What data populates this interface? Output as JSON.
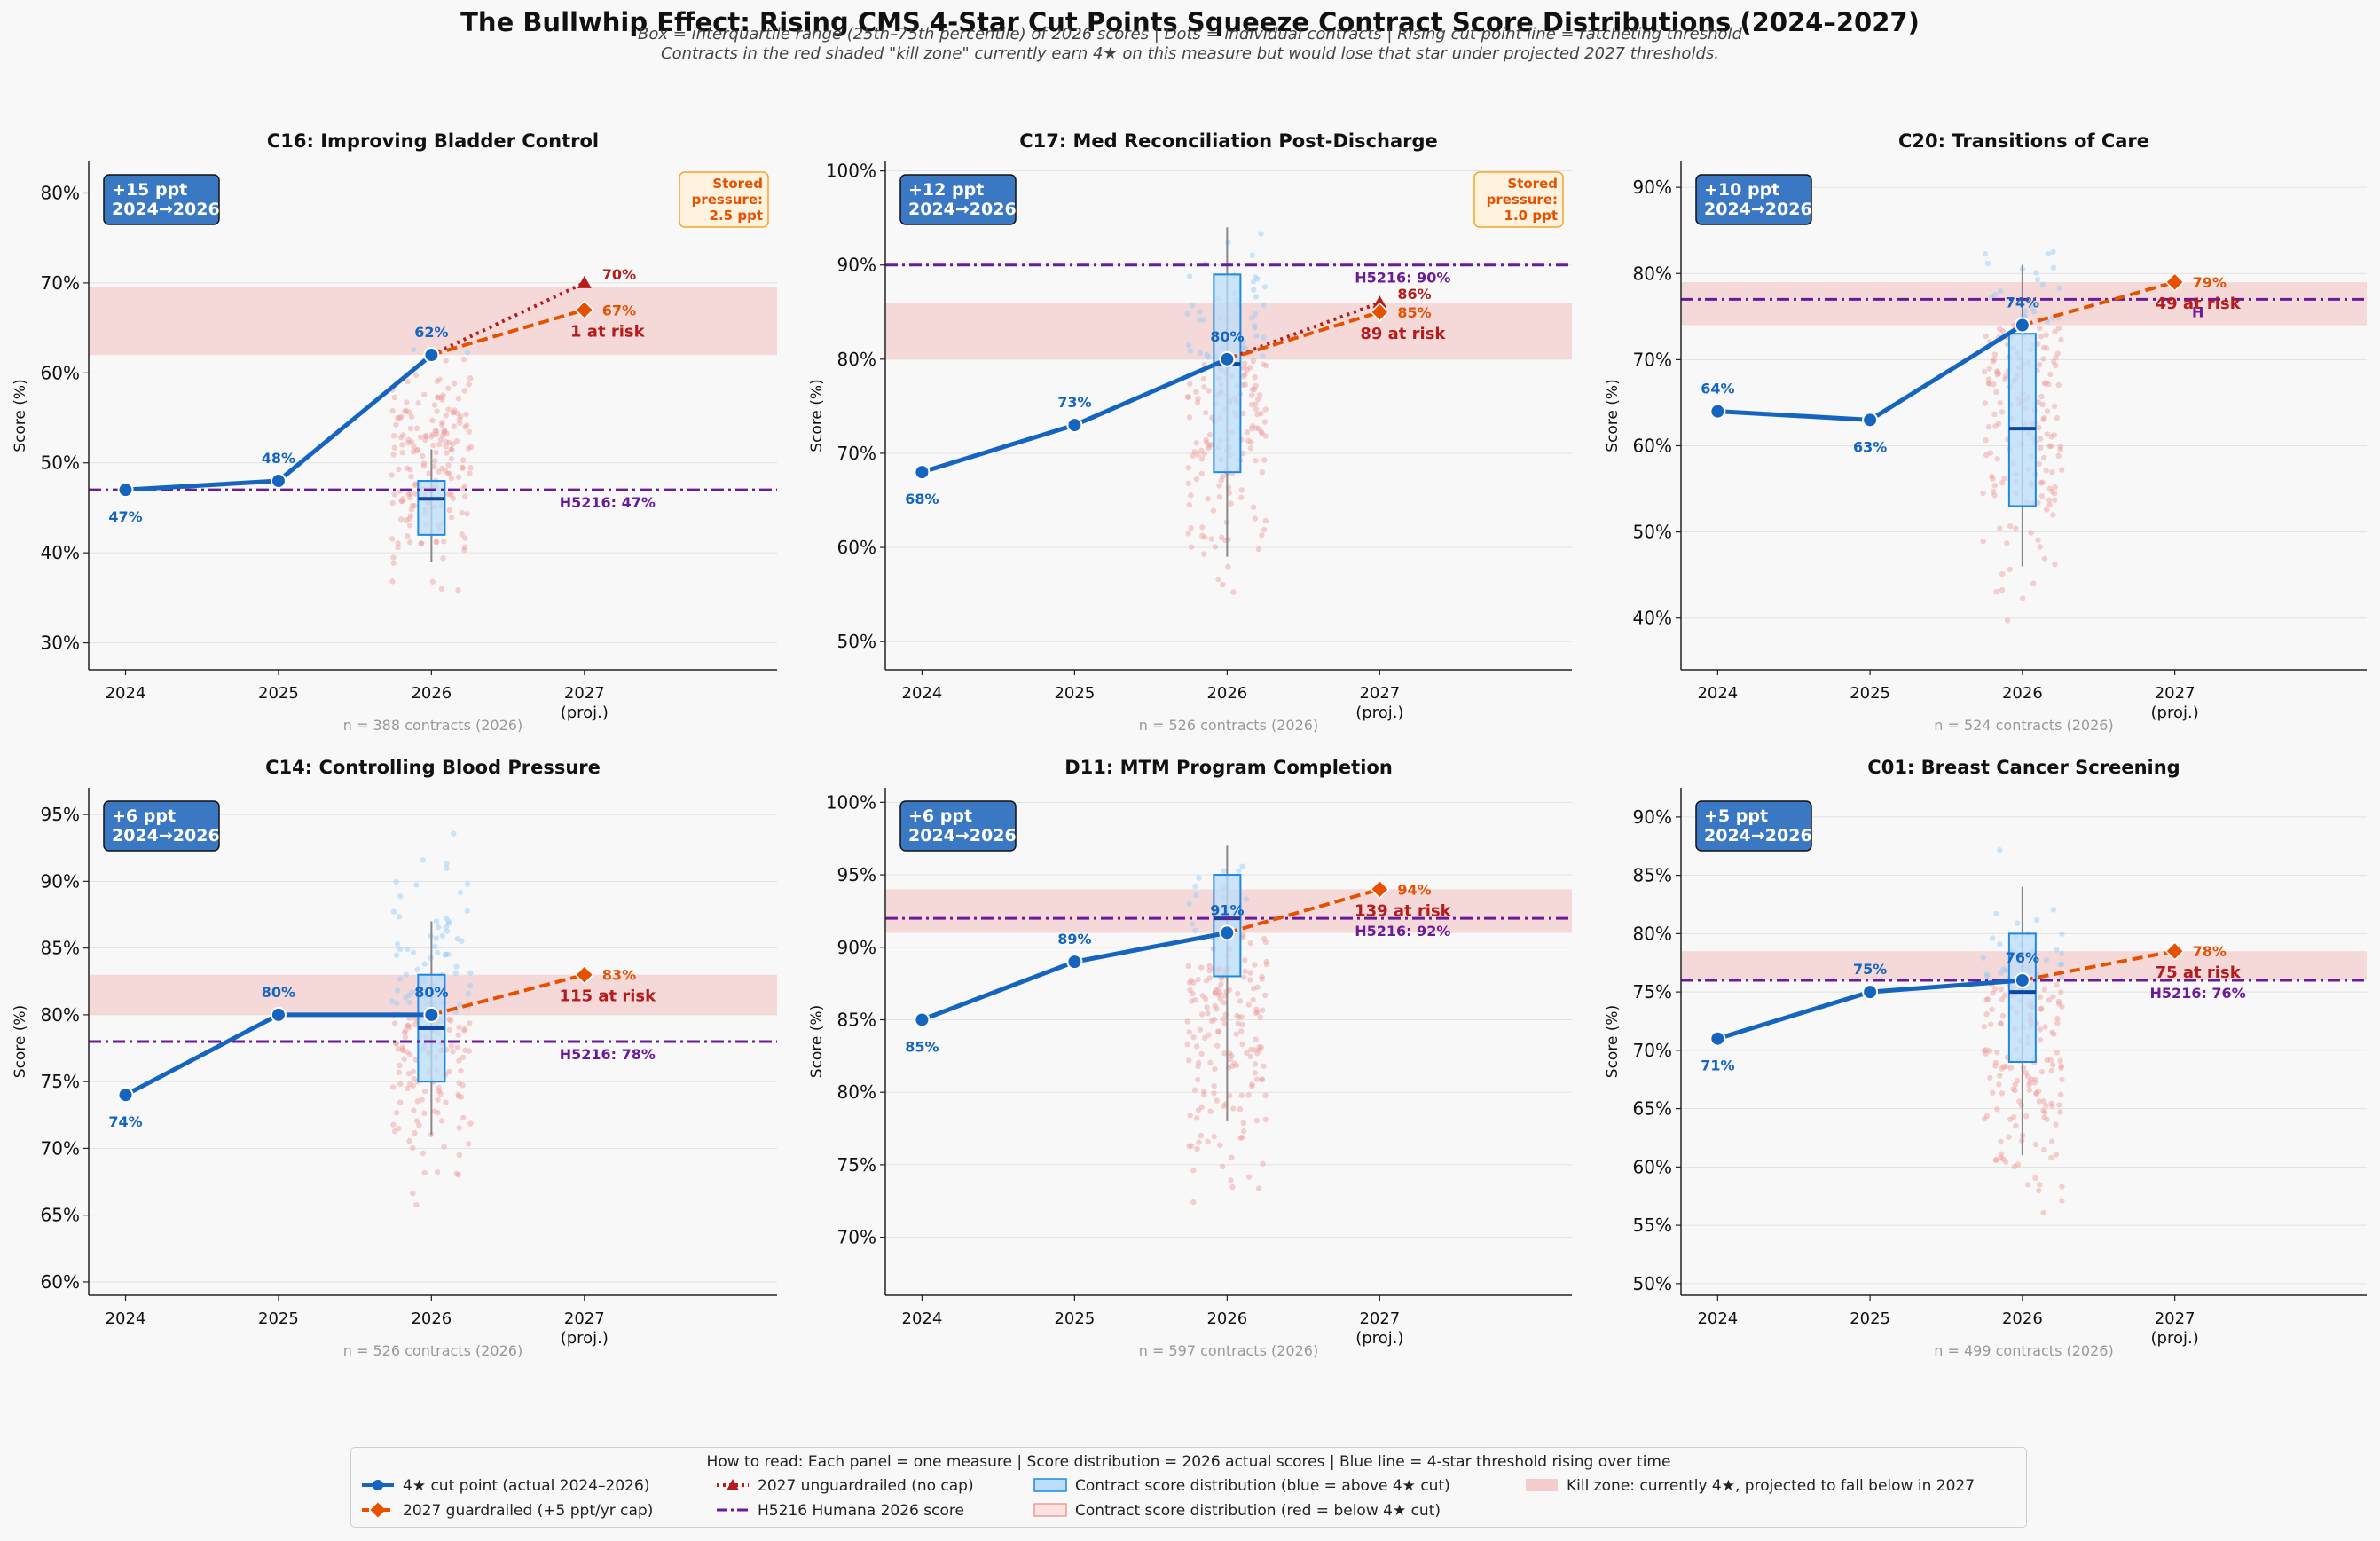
{
  "title": "The Bullwhip Effect: Rising CMS 4-Star Cut Points Squeeze Contract Score Distributions (2024–2027)",
  "subtitle_1": "Box = interquartile range (25th–75th percentile) of 2026 scores  |  Dots = individual contracts  |  Rising cut point line = ratcheting threshold",
  "subtitle_2": "Contracts in the red shaded \"kill zone\" currently earn 4★ on this measure but would lose that star under projected 2027 thresholds.",
  "x_ticks": [
    "2024",
    "2025",
    "2026",
    "2027"
  ],
  "x_tick_2027_sub": "(proj.)",
  "ylabel": "Score (%)",
  "colors": {
    "cut": "#1565c0",
    "guard": "#e65100",
    "unguard": "#b71c1c",
    "humana": "#6a1b9a",
    "kill": "#f4cccc",
    "dot_above": "#90caf9",
    "dot_below": "#ef9a9a",
    "box_fill": "#bbdefb",
    "badge": "#3a78c3",
    "stored_fill": "#fff3e0",
    "stored_edge": "#f5a623"
  },
  "chart_data": [
    {
      "type": "line",
      "title": "C16: Improving Bladder Control",
      "ylim": [
        27,
        83.5
      ],
      "yticks": [
        30,
        40,
        50,
        60,
        70,
        80
      ],
      "x": [
        2024,
        2025,
        2026,
        2027
      ],
      "cut_points": [
        47,
        48,
        62
      ],
      "cut_labels": [
        "47%",
        "48%",
        "62%"
      ],
      "guardrailed_2027": 67,
      "guardrailed_label": "67%",
      "unguardrailed_2027": 70,
      "unguardrailed_label": "70%",
      "kill_zone": [
        62,
        69.5
      ],
      "humana_2026": 47,
      "humana_label": "H5216: 47%",
      "at_risk_label": "1 at risk",
      "box_2026": {
        "q1": 42,
        "median": 46,
        "q3": 48,
        "whisker_low": 39,
        "whisker_high": 51.5
      },
      "dot_range": [
        34,
        65
      ],
      "n_label": "n = 388 contracts (2026)",
      "badge": "+15 ppt\n2024→2026",
      "stored_pressure": "Stored\npressure:\n2.5 ppt"
    },
    {
      "type": "line",
      "title": "C17: Med Reconciliation Post-Discharge",
      "ylim": [
        47,
        101
      ],
      "yticks": [
        50,
        60,
        70,
        80,
        90,
        100
      ],
      "x": [
        2024,
        2025,
        2026,
        2027
      ],
      "cut_points": [
        68,
        73,
        80
      ],
      "cut_labels": [
        "68%",
        "73%",
        "80%"
      ],
      "guardrailed_2027": 85,
      "guardrailed_label": "85%",
      "unguardrailed_2027": 86,
      "unguardrailed_label": "86%",
      "kill_zone": [
        80,
        86
      ],
      "humana_2026": 90,
      "humana_label": "H5216: 90%",
      "at_risk_label": "89 at risk",
      "box_2026": {
        "q1": 68,
        "median": 79.5,
        "q3": 89,
        "whisker_low": 59,
        "whisker_high": 94
      },
      "dot_range": [
        52,
        98
      ],
      "n_label": "n = 526 contracts (2026)",
      "badge": "+12 ppt\n2024→2026",
      "stored_pressure": "Stored\npressure:\n1.0 ppt"
    },
    {
      "type": "line",
      "title": "C20: Transitions of Care",
      "ylim": [
        34,
        93
      ],
      "yticks": [
        40,
        50,
        60,
        70,
        80,
        90
      ],
      "x": [
        2024,
        2025,
        2026,
        2027
      ],
      "cut_points": [
        64,
        63,
        74
      ],
      "cut_labels": [
        "64%",
        "63%",
        "74%"
      ],
      "guardrailed_2027": 79,
      "guardrailed_label": "79%",
      "kill_zone": [
        74,
        79
      ],
      "humana_2026": 77,
      "humana_label": "H",
      "at_risk_label": "49 at risk",
      "box_2026": {
        "q1": 53,
        "median": 62,
        "q3": 73,
        "whisker_low": 46,
        "whisker_high": 81
      },
      "dot_range": [
        35,
        93
      ],
      "n_label": "n = 524 contracts (2026)",
      "badge": "+10 ppt\n2024→2026"
    },
    {
      "type": "line",
      "title": "C14: Controlling Blood Pressure",
      "ylim": [
        59,
        97
      ],
      "yticks": [
        60,
        65,
        70,
        75,
        80,
        85,
        90,
        95
      ],
      "x": [
        2024,
        2025,
        2026,
        2027
      ],
      "cut_points": [
        74,
        80,
        80
      ],
      "cut_labels": [
        "74%",
        "80%",
        "80%"
      ],
      "guardrailed_2027": 83,
      "guardrailed_label": "83%",
      "kill_zone": [
        80,
        83
      ],
      "humana_2026": 78,
      "humana_label": "H5216: 78%",
      "at_risk_label": "115 at risk",
      "box_2026": {
        "q1": 75,
        "median": 79,
        "q3": 83,
        "whisker_low": 71,
        "whisker_high": 87
      },
      "dot_range": [
        62,
        95
      ],
      "n_label": "n = 526 contracts (2026)",
      "badge": "+6 ppt\n2024→2026"
    },
    {
      "type": "line",
      "title": "D11: MTM Program Completion",
      "ylim": [
        66,
        101
      ],
      "yticks": [
        70,
        75,
        80,
        85,
        90,
        95,
        100
      ],
      "x": [
        2024,
        2025,
        2026,
        2027
      ],
      "cut_points": [
        85,
        89,
        91
      ],
      "cut_labels": [
        "85%",
        "89%",
        "91%"
      ],
      "guardrailed_2027": 94,
      "guardrailed_label": "94%",
      "kill_zone": [
        91,
        94
      ],
      "humana_2026": 92,
      "humana_label": "H5216: 92%",
      "at_risk_label": "139 at risk",
      "box_2026": {
        "q1": 88,
        "median": 92,
        "q3": 95,
        "whisker_low": 78,
        "whisker_high": 97
      },
      "dot_range": [
        69,
        100
      ],
      "n_label": "n = 597 contracts (2026)",
      "badge": "+6 ppt\n2024→2026"
    },
    {
      "type": "line",
      "title": "C01: Breast Cancer Screening",
      "ylim": [
        49,
        92.5
      ],
      "yticks": [
        50,
        55,
        60,
        65,
        70,
        75,
        80,
        85,
        90
      ],
      "x": [
        2024,
        2025,
        2026,
        2027
      ],
      "cut_points": [
        71,
        75,
        76
      ],
      "cut_labels": [
        "71%",
        "75%",
        "76%"
      ],
      "guardrailed_2027": 78.5,
      "guardrailed_label": "78%",
      "kill_zone": [
        76,
        78.5
      ],
      "humana_2026": 76,
      "humana_label": "H5216: 76%",
      "at_risk_label": "75 at risk",
      "box_2026": {
        "q1": 69,
        "median": 75,
        "q3": 80,
        "whisker_low": 61,
        "whisker_high": 84
      },
      "dot_range": [
        52,
        89
      ],
      "n_label": "n = 499 contracts (2026)",
      "badge": "+5 ppt\n2024→2026"
    }
  ],
  "legend": {
    "header": "How to read: Each panel = one measure  |  Score distribution = 2026 actual scores  |  Blue line = 4-star threshold rising over time",
    "items": [
      "4★ cut point (actual 2024–2026)",
      "2027 guardrailed (+5 ppt/yr cap)",
      "2027 unguardrailed (no cap)",
      "H5216 Humana 2026 score",
      "Contract score distribution (blue = above 4★ cut)",
      "Contract score distribution (red = below 4★ cut)",
      "Kill zone: currently 4★, projected to fall below in 2027"
    ]
  }
}
